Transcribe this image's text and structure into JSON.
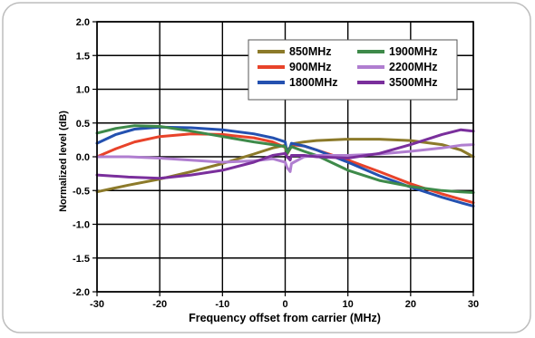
{
  "chart_data": {
    "type": "line",
    "title": "",
    "xlabel": "Frequency offset from carrier (MHz)",
    "ylabel": "Normalized level (dB)",
    "xlim": [
      -30,
      30
    ],
    "ylim": [
      -2.0,
      2.0
    ],
    "xticks": [
      "-30",
      "-20",
      "-10",
      "0",
      "10",
      "20",
      "30"
    ],
    "yticks": [
      "2.0",
      "1.5",
      "1.0",
      "0.5",
      "0.0",
      "-0.5",
      "-1.0",
      "-1.5",
      "-2.0"
    ],
    "grid": true,
    "legend": "top-right",
    "series": [
      {
        "name": "850MHz",
        "color": "#8c7a2a",
        "x": [
          -30,
          -25,
          -20,
          -15,
          -10,
          -5,
          -2,
          0,
          0.3,
          0.8,
          1,
          3,
          5,
          10,
          15,
          20,
          25,
          28,
          30
        ],
        "y": [
          -0.52,
          -0.42,
          -0.33,
          -0.22,
          -0.1,
          0.04,
          0.13,
          0.17,
          0.1,
          0.14,
          0.19,
          0.22,
          0.24,
          0.26,
          0.26,
          0.24,
          0.18,
          0.1,
          0.0
        ]
      },
      {
        "name": "900MHz",
        "color": "#e8432a",
        "x": [
          -30,
          -27,
          -24,
          -20,
          -15,
          -10,
          -5,
          -2,
          0,
          0.3,
          0.8,
          1,
          3,
          5,
          10,
          15,
          20,
          25,
          28,
          30
        ],
        "y": [
          0.0,
          0.12,
          0.22,
          0.3,
          0.34,
          0.33,
          0.28,
          0.22,
          0.14,
          0.04,
          0.12,
          0.18,
          0.16,
          0.1,
          -0.05,
          -0.22,
          -0.4,
          -0.55,
          -0.63,
          -0.68
        ]
      },
      {
        "name": "1800MHz",
        "color": "#2451b0",
        "x": [
          -30,
          -27,
          -24,
          -20,
          -15,
          -10,
          -5,
          -2,
          0,
          0.3,
          0.8,
          1,
          3,
          5,
          10,
          15,
          20,
          25,
          28,
          30
        ],
        "y": [
          0.2,
          0.33,
          0.41,
          0.44,
          0.43,
          0.4,
          0.34,
          0.28,
          0.22,
          0.05,
          0.14,
          0.2,
          0.16,
          0.1,
          -0.08,
          -0.28,
          -0.45,
          -0.6,
          -0.68,
          -0.73
        ]
      },
      {
        "name": "1900MHz",
        "color": "#3e8a4a",
        "x": [
          -30,
          -27,
          -24,
          -20,
          -15,
          -10,
          -5,
          -2,
          0,
          0.3,
          0.8,
          1,
          3,
          5,
          10,
          15,
          20,
          25,
          28,
          30
        ],
        "y": [
          0.35,
          0.42,
          0.46,
          0.45,
          0.38,
          0.3,
          0.22,
          0.18,
          0.15,
          0.05,
          0.12,
          0.15,
          0.08,
          0.02,
          -0.2,
          -0.35,
          -0.44,
          -0.5,
          -0.52,
          -0.53
        ]
      },
      {
        "name": "2200MHz",
        "color": "#b07ed0",
        "x": [
          -30,
          -25,
          -20,
          -15,
          -10,
          -5,
          -2,
          0,
          0.3,
          0.8,
          1,
          3,
          5,
          10,
          15,
          20,
          25,
          28,
          30
        ],
        "y": [
          0.0,
          0.0,
          -0.02,
          -0.05,
          -0.08,
          -0.06,
          -0.03,
          -0.08,
          -0.16,
          -0.22,
          -0.1,
          0.0,
          0.02,
          0.02,
          0.04,
          0.08,
          0.13,
          0.17,
          0.18
        ]
      },
      {
        "name": "3500MHz",
        "color": "#7a2f9c",
        "x": [
          -30,
          -25,
          -20,
          -15,
          -10,
          -5,
          -2,
          0,
          0.3,
          0.8,
          1,
          3,
          5,
          10,
          15,
          20,
          25,
          28,
          30
        ],
        "y": [
          -0.27,
          -0.3,
          -0.32,
          -0.27,
          -0.2,
          -0.08,
          0.02,
          0.05,
          0.0,
          -0.05,
          0.02,
          0.02,
          0.0,
          -0.02,
          0.05,
          0.18,
          0.33,
          0.4,
          0.38
        ]
      }
    ]
  }
}
